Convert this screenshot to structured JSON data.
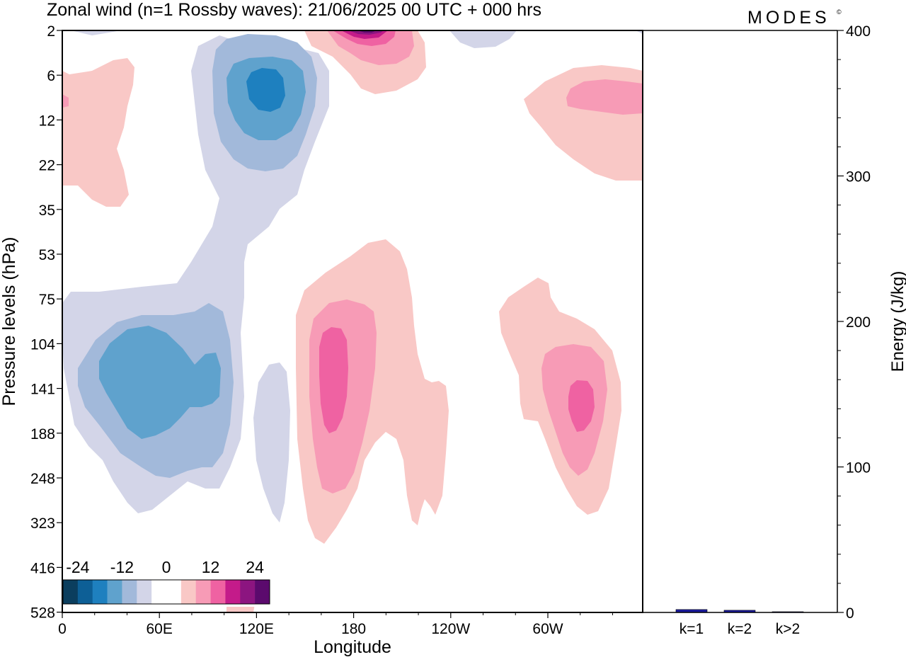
{
  "chart_data": [
    {
      "type": "heatmap",
      "title": "Zonal wind (n=1 Rossby waves):  21/06/2025  00 UTC  + 000 hrs",
      "xlabel": "Longitude",
      "ylabel": "Pressure levels (hPa)",
      "x_ticks": [
        "0",
        "60E",
        "120E",
        "180",
        "120W",
        "60W"
      ],
      "y_ticks": [
        "2",
        "6",
        "12",
        "22",
        "35",
        "53",
        "75",
        "104",
        "141",
        "188",
        "248",
        "323",
        "416",
        "528"
      ],
      "colorbar": {
        "tick_labels": [
          "-24",
          "-12",
          "0",
          "12",
          "24"
        ],
        "colors": [
          "#0b3e5e",
          "#0d5f96",
          "#1e80bf",
          "#5fa2cd",
          "#a2b9da",
          "#d3d5e8",
          "#ffffff",
          "#ffffff",
          "#f9c8c6",
          "#f79bb6",
          "#ef62a2",
          "#c41b8a",
          "#8c1580",
          "#5b0a6d"
        ]
      },
      "contours": [
        {
          "level": "-4",
          "color": "#d3d5e8",
          "regions": [
            "88,428 L100,412 L140,412 L200,405 L250,400 L270,370 L300,320 L310,280 L290,240 L280,190 L270,100 L280,65 L310,50 L340,60 L380,55 L410,65 L450,75 L465,100 L465,150 L445,200 L430,240 L420,275 L395,295 L380,320 L350,345 L345,370 L345,420 L340,470 L345,560 L340,620 L325,660 L310,690 L290,690 L265,680 L240,700 L215,720 L195,725 L180,710 L160,680 L145,650 L125,630 L105,600 L90,520 L88,480 Z",
            "100,43 L130,50 L160,45 L170,43 Z",
            "365,540 L380,515 L395,512 L405,525 L410,580 L408,650 L402,710 L395,738 L385,725 L372,690 L362,650 L358,590 Z",
            "635,43 L650,60 L670,68 L700,66 L720,55 L730,43 Z",
            "898,43 L908,43 L908,48 Z"
          ]
        },
        {
          "level": "-8",
          "color": "#a2b9da",
          "regions": [
            "300,100 L305,70 L320,55 L350,48 L390,50 L420,60 L440,80 L448,110 L445,150 L432,190 L420,220 L400,238 L375,242 L350,238 L330,225 L312,200 L302,160 Z",
            "110,520 L135,480 L165,455 L200,445 L245,445 L275,440 L295,428 L315,440 L325,480 L330,540 L325,600 L315,640 L300,660 L285,660 L265,665 L240,675 L220,672 L200,660 L170,640 L140,600 L120,575 L110,545 Z"
          ]
        },
        {
          "level": "-12",
          "color": "#5fa2cd",
          "regions": [
            "320,110 L330,90 L352,82 L385,80 L412,85 L428,100 L432,130 L425,162 L412,185 L390,198 L365,198 L345,188 L332,170 L322,145 Z",
            "140,510 L155,485 L180,465 L210,460 L235,470 L258,492 L275,515 L290,500 L305,498 L312,520 L310,560 L300,570 L285,575 L268,575 L255,590 L240,605 L220,615 L200,620 L180,605 L165,580 L150,555 L140,535 Z"
          ]
        },
        {
          "level": "-16",
          "color": "#1e80bf",
          "regions": [
            "348,115 L355,102 L370,96 L390,98 L400,110 L403,135 L396,152 L382,158 L365,155 L352,140 Z"
          ]
        },
        {
          "level": "4",
          "color": "#f9c8c6",
          "regions": [
            "88,100 L98,105 L130,100 L160,85 L180,82 L190,95 L188,120 L180,150 L175,180 L165,210 L175,240 L182,275 L170,292 L150,292 L130,282 L118,270 L110,262 L88,262 Z",
            "430,43 L440,65 L470,80 L495,105 L510,125 L530,133 L560,128 L590,112 L602,95 L600,60 L590,43 Z",
            "740,140 L770,115 L810,96 L850,92 L890,96 L908,100 L908,255 L870,255 L840,245 L810,225 L785,205 L765,180 L748,160 Z",
            "418,445 L430,410 L460,385 L495,362 L520,343 L545,338 L565,355 L575,380 L582,420 L585,460 L590,500 L600,535 L610,540 L620,538 L630,545 L634,580 L630,640 L625,700 L615,727 L608,715 L600,705 L595,720 L590,742 L582,735 L575,700 L570,650 L560,620 L545,610 L530,625 L515,650 L505,690 L490,720 L475,745 L458,768 L445,760 L435,735 L428,690 L420,620 L418,520 Z",
            "705,440 L718,420 L740,405 L760,392 L775,400 L778,420 L790,440 L815,450 L840,465 L865,495 L877,540 L878,580 L870,630 L860,690 L845,722 L830,727 L815,715 L800,690 L785,660 L770,620 L760,595 L740,592 L735,570 L733,530 L718,495 L708,470 Z",
            "320,853 L360,853 L358,865 L320,865 Z"
          ]
        },
        {
          "level": "8",
          "color": "#f79bb6",
          "regions": [
            "88,133 L97,138 L97,150 L88,152 Z",
            "462,43 L478,65 L495,75 L510,85 L535,92 L560,90 L578,80 L585,65 L582,43 Z",
            "800,138 L806,125 L825,115 L855,112 L885,115 L908,118 L908,160 L880,162 L850,158 L820,154 L802,150 Z",
            "437,480 L443,450 L465,428 L490,423 L515,430 L528,440 L532,470 L530,520 L522,580 L512,625 L500,668 L488,690 L470,697 L455,690 L448,660 L442,620 L437,560 Z",
            "765,520 L770,500 L785,490 L810,486 L835,490 L853,510 L858,550 L852,595 L840,640 L830,663 L817,672 L805,660 L795,640 L785,610 L775,580 L767,550 Z"
          ]
        },
        {
          "level": "12",
          "color": "#ef62a2",
          "regions": [
            "470,43 L490,55 L505,62 L525,65 L545,62 L557,52 L559,43 Z",
            "451,490 L456,470 L468,462 L482,464 L490,480 L492,520 L490,560 L484,590 L475,608 L465,612 L458,600 L453,570 L451,530 Z",
            "803,560 L806,545 L815,537 L830,538 L838,550 L840,575 L835,595 L825,608 L815,610 L808,595 L803,578 Z"
          ]
        },
        {
          "level": "16",
          "color": "#c41b8a",
          "regions": [
            "482,43 L500,52 L515,55 L535,53 L548,43 Z"
          ]
        },
        {
          "level": "20",
          "color": "#8c1580",
          "regions": [
            "492,43 L506,48 L522,49 L538,46 L542,43 Z"
          ]
        },
        {
          "level": "24",
          "color": "#5b0a6d",
          "regions": [
            "505,43 L515,46 L525,46 L532,43 Z"
          ]
        }
      ]
    },
    {
      "type": "bar",
      "categories": [
        "k=1",
        "k=2",
        "k>2"
      ],
      "values": [
        2,
        1.5,
        0.5
      ],
      "ylabel": "Energy (J/kg)",
      "ylim": [
        0,
        400
      ],
      "y_ticks": [
        "0",
        "100",
        "200",
        "300",
        "400"
      ],
      "bar_color": "#1a1aa0"
    }
  ],
  "branding": {
    "logo": "MODES",
    "logo_mark": "©",
    "logo_color": "#555555"
  }
}
